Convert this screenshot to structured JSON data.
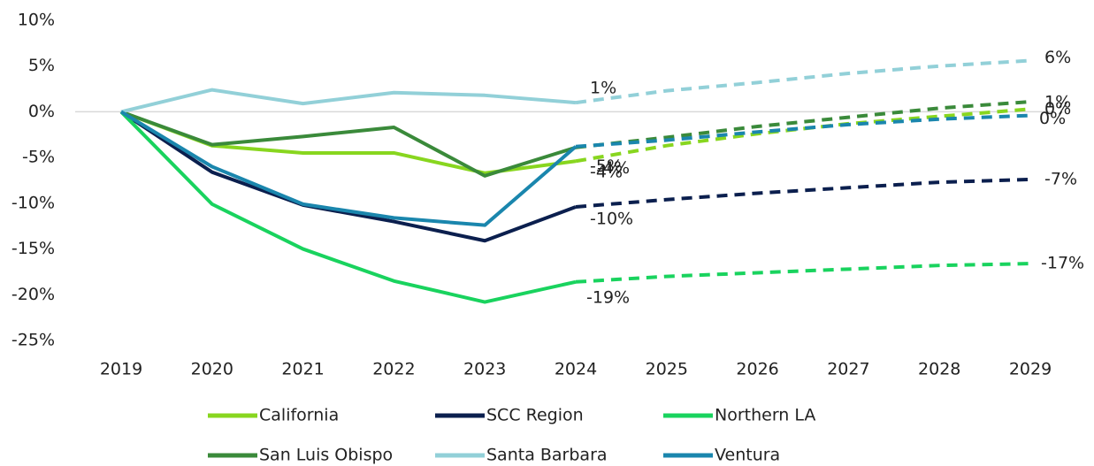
{
  "chart_data": {
    "type": "line",
    "categories": [
      "2019",
      "2020",
      "2021",
      "2022",
      "2023",
      "2024",
      "2025",
      "2026",
      "2027",
      "2028",
      "2029"
    ],
    "dashed_from_category": "2024",
    "ylim": [
      -25,
      10
    ],
    "yticks": [
      {
        "value": -25,
        "label": "-25%"
      },
      {
        "value": -20,
        "label": "-20%"
      },
      {
        "value": -15,
        "label": "-15%"
      },
      {
        "value": -10,
        "label": "-10%"
      },
      {
        "value": -5,
        "label": "-5%"
      },
      {
        "value": 0,
        "label": "0%"
      },
      {
        "value": 5,
        "label": "5%"
      },
      {
        "value": 10,
        "label": "10%"
      }
    ],
    "series": [
      {
        "name": "California",
        "color": "#88d61f",
        "values": [
          0,
          -3.7,
          -4.5,
          -4.5,
          -6.7,
          -5.4,
          -3.7,
          -2.4,
          -1.3,
          -0.5,
          0.3
        ],
        "value_labels": [
          null,
          null,
          null,
          null,
          null,
          "-5%",
          null,
          null,
          null,
          null,
          "0%"
        ]
      },
      {
        "name": "SCC Region",
        "color": "#0b1f4e",
        "values": [
          0,
          -6.6,
          -10.2,
          -12.0,
          -14.1,
          -10.4,
          -9.6,
          -8.9,
          -8.3,
          -7.7,
          -7.4
        ],
        "value_labels": [
          null,
          null,
          null,
          null,
          null,
          "-10%",
          null,
          null,
          null,
          null,
          "-7%"
        ]
      },
      {
        "name": "Northern LA",
        "color": "#19d35e",
        "values": [
          0,
          -10.1,
          -15.0,
          -18.5,
          -20.8,
          -18.6,
          -18.0,
          -17.6,
          -17.2,
          -16.8,
          -16.6
        ],
        "value_labels": [
          null,
          null,
          null,
          null,
          null,
          "-19%",
          null,
          null,
          null,
          null,
          "-17%"
        ]
      },
      {
        "name": "San Luis Obispo",
        "color": "#3a8a3a",
        "values": [
          0,
          -3.6,
          -2.7,
          -1.7,
          -7.0,
          -3.9,
          -2.8,
          -1.6,
          -0.6,
          0.4,
          1.1
        ],
        "value_labels": [
          null,
          null,
          null,
          null,
          null,
          "-4%",
          null,
          null,
          null,
          null,
          "1%"
        ]
      },
      {
        "name": "Santa Barbara",
        "color": "#92d0d8",
        "values": [
          0,
          2.4,
          0.9,
          2.1,
          1.8,
          1.0,
          2.3,
          3.2,
          4.2,
          5.0,
          5.6
        ],
        "value_labels": [
          null,
          null,
          null,
          null,
          null,
          "1%",
          null,
          null,
          null,
          null,
          "6%"
        ]
      },
      {
        "name": "Ventura",
        "color": "#1a86ad",
        "values": [
          0,
          -6.0,
          -10.1,
          -11.6,
          -12.4,
          -3.8,
          -3.1,
          -2.2,
          -1.4,
          -0.8,
          -0.4
        ],
        "value_labels": [
          null,
          null,
          null,
          null,
          null,
          "-4%",
          null,
          null,
          null,
          null,
          "0%"
        ]
      }
    ]
  }
}
